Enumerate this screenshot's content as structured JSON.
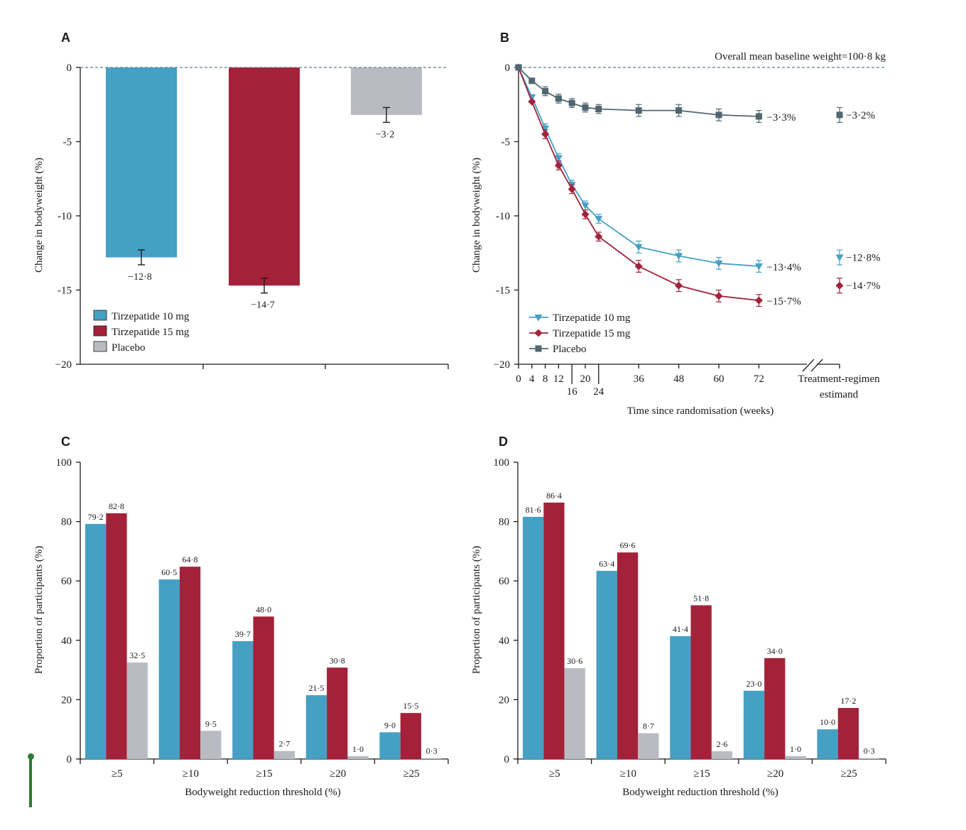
{
  "colors": {
    "t10": "#45a0c4",
    "t15": "#a3223a",
    "placebo": "#b8bcc2",
    "placebo_line": "#4f6670",
    "axis": "#1a1a1a",
    "zero_line": "#5b7f8c",
    "accent": "#2e7d32"
  },
  "legend": [
    "Tirzepatide 10 mg",
    "Tirzepatide 15 mg",
    "Placebo"
  ],
  "panels": {
    "A": {
      "letter": "A",
      "ylabel": "Change in bodyweight (%)"
    },
    "B": {
      "letter": "B",
      "ylabel": "Change in bodyweight (%)",
      "xlabel": "Time since randomisation (weeks)",
      "annotation": "Overall mean baseline weight=100·8 kg",
      "estimand_label_line1": "Treatment-regimen",
      "estimand_label_line2": "estimand"
    },
    "C": {
      "letter": "C",
      "ylabel": "Proportion of participants (%)",
      "xlabel": "Bodyweight reduction threshold (%)"
    },
    "D": {
      "letter": "D",
      "ylabel": "Proportion of participants (%)",
      "xlabel": "Bodyweight reduction threshold (%)"
    }
  },
  "chart_data": [
    {
      "type": "bar",
      "panel": "A",
      "categories": [
        "Tirzepatide 10 mg",
        "Tirzepatide 15 mg",
        "Placebo"
      ],
      "values": [
        -12.8,
        -14.7,
        -3.2
      ],
      "labels": [
        "−12·8",
        "−14·7",
        "−3·2"
      ],
      "error_low": [
        -13.3,
        -15.2,
        -3.7
      ],
      "error_high": [
        -12.3,
        -14.2,
        -2.7
      ],
      "ylim": [
        -20,
        0
      ],
      "yticks": [
        0,
        -5,
        -10,
        -15,
        -20
      ],
      "ytick_labels": [
        "0",
        "-5",
        "-10",
        "-15",
        "−20"
      ],
      "ylabel": "Change in bodyweight (%)",
      "legend": "bottom-left"
    },
    {
      "type": "line",
      "panel": "B",
      "x": [
        0,
        4,
        8,
        12,
        16,
        20,
        24,
        36,
        48,
        60,
        72
      ],
      "xlim": [
        0,
        84
      ],
      "xticks_top": [
        0,
        4,
        8,
        12,
        20,
        36,
        48,
        60,
        72
      ],
      "xticks_bottom": [
        16,
        24
      ],
      "series": [
        {
          "name": "Tirzepatide 10 mg",
          "values": [
            0,
            -2.0,
            -4.1,
            -6.1,
            -7.9,
            -9.3,
            -10.2,
            -12.1,
            -12.7,
            -13.2,
            -13.4
          ],
          "end_label": "−13·4%",
          "estimand": -12.8,
          "estimand_label": "−12·8%"
        },
        {
          "name": "Tirzepatide 15 mg",
          "values": [
            0,
            -2.3,
            -4.5,
            -6.6,
            -8.2,
            -9.9,
            -11.4,
            -13.4,
            -14.7,
            -15.4,
            -15.7
          ],
          "end_label": "−15·7%",
          "estimand": -14.7,
          "estimand_label": "−14·7%"
        },
        {
          "name": "Placebo",
          "values": [
            0,
            -0.9,
            -1.6,
            -2.1,
            -2.4,
            -2.7,
            -2.8,
            -2.9,
            -2.9,
            -3.2,
            -3.3
          ],
          "end_label": "−3·3%",
          "estimand": -3.2,
          "estimand_label": "−3·2%"
        }
      ],
      "ylim": [
        -20,
        0
      ],
      "yticks": [
        0,
        -5,
        -10,
        -15,
        -20
      ],
      "ytick_labels": [
        "0",
        "-5",
        "-10",
        "-15",
        "−20"
      ],
      "xlabel": "Time since randomisation (weeks)",
      "ylabel": "Change in bodyweight (%)",
      "legend": "bottom-left"
    },
    {
      "type": "bar",
      "panel": "C",
      "categories": [
        "≥5",
        "≥10",
        "≥15",
        "≥20",
        "≥25"
      ],
      "series": [
        {
          "name": "Tirzepatide 10 mg",
          "values": [
            79.2,
            60.5,
            39.7,
            21.5,
            9.0
          ],
          "labels": [
            "79·2",
            "60·5",
            "39·7",
            "21·5",
            "9·0"
          ]
        },
        {
          "name": "Tirzepatide 15 mg",
          "values": [
            82.8,
            64.8,
            48.0,
            30.8,
            15.5
          ],
          "labels": [
            "82·8",
            "64·8",
            "48·0",
            "30·8",
            "15·5"
          ]
        },
        {
          "name": "Placebo",
          "values": [
            32.5,
            9.5,
            2.7,
            1.0,
            0.3
          ],
          "labels": [
            "32·5",
            "9·5",
            "2·7",
            "1·0",
            "0·3"
          ]
        }
      ],
      "ylim": [
        0,
        100
      ],
      "yticks": [
        0,
        20,
        40,
        60,
        80,
        100
      ],
      "xlabel": "Bodyweight reduction threshold (%)",
      "ylabel": "Proportion of participants (%)"
    },
    {
      "type": "bar",
      "panel": "D",
      "categories": [
        "≥5",
        "≥10",
        "≥15",
        "≥20",
        "≥25"
      ],
      "series": [
        {
          "name": "Tirzepatide 10 mg",
          "values": [
            81.6,
            63.4,
            41.4,
            23.0,
            10.0
          ],
          "labels": [
            "81·6",
            "63·4",
            "41·4",
            "23·0",
            "10·0"
          ]
        },
        {
          "name": "Tirzepatide 15 mg",
          "values": [
            86.4,
            69.6,
            51.8,
            34.0,
            17.2
          ],
          "labels": [
            "86·4",
            "69·6",
            "51·8",
            "34·0",
            "17·2"
          ]
        },
        {
          "name": "Placebo",
          "values": [
            30.6,
            8.7,
            2.6,
            1.0,
            0.3
          ],
          "labels": [
            "30·6",
            "8·7",
            "2·6",
            "1·0",
            "0·3"
          ]
        }
      ],
      "ylim": [
        0,
        100
      ],
      "yticks": [
        0,
        20,
        40,
        60,
        80,
        100
      ],
      "xlabel": "Bodyweight reduction threshold (%)",
      "ylabel": "Proportion of participants (%)"
    }
  ]
}
